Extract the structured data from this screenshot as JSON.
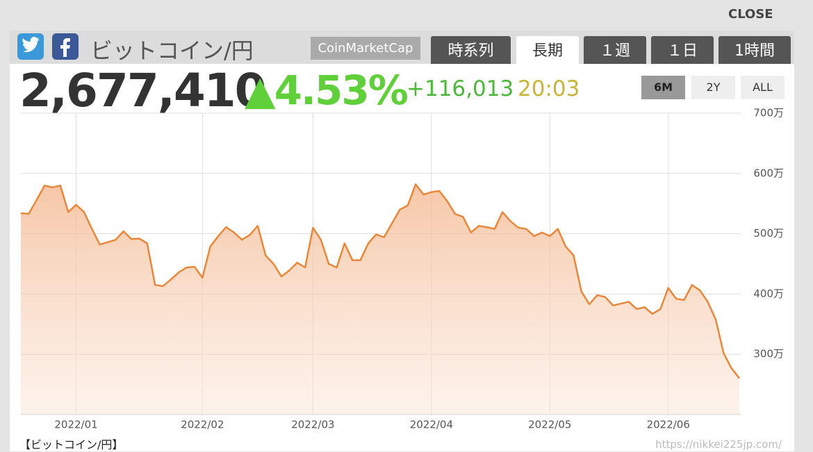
{
  "close": "CLOSE",
  "header": {
    "title": "ビットコイン/円",
    "source": "CoinMarketCap",
    "tabs": [
      "時系列",
      "長期",
      "１週",
      "１日",
      "1時間"
    ],
    "active_tab": 1
  },
  "quote": {
    "price": "2,677,410",
    "change_pct": "▲4.53%",
    "change": "+116,013",
    "time": "20:03"
  },
  "ranges": [
    "6M",
    "2Y",
    "ALL"
  ],
  "active_range": 0,
  "footer": {
    "label": "【ビットコイン/円】",
    "url": "https://nikkei225jp.com/"
  },
  "chart_data": {
    "type": "area",
    "categories": [
      null,
      null,
      null,
      null,
      null,
      null,
      null,
      "2022/01",
      null,
      null,
      null,
      null,
      null,
      null,
      null,
      null,
      null,
      null,
      null,
      null,
      null,
      null,
      null,
      "2022/02",
      null,
      null,
      null,
      null,
      null,
      null,
      null,
      null,
      null,
      null,
      null,
      null,
      null,
      "2022/03",
      null,
      null,
      null,
      null,
      null,
      null,
      null,
      null,
      null,
      null,
      null,
      null,
      null,
      null,
      "2022/04",
      null,
      null,
      null,
      null,
      null,
      null,
      null,
      null,
      null,
      null,
      null,
      null,
      null,
      null,
      "2022/05",
      null,
      null,
      null,
      null,
      null,
      null,
      null,
      null,
      null,
      null,
      null,
      null,
      null,
      null,
      "2022/06",
      null,
      null,
      null,
      null,
      null,
      null,
      null,
      null,
      null
    ],
    "series": [
      {
        "name": "ビットコイン/円",
        "color": "#e8873a",
        "values": [
          5340000,
          5330000,
          5560000,
          5800000,
          5770000,
          5800000,
          5360000,
          5480000,
          5360000,
          5080000,
          4820000,
          4860000,
          4900000,
          5040000,
          4910000,
          4920000,
          4840000,
          4150000,
          4130000,
          4240000,
          4360000,
          4440000,
          4450000,
          4270000,
          4790000,
          4960000,
          5110000,
          5020000,
          4900000,
          4980000,
          5130000,
          4640000,
          4500000,
          4290000,
          4390000,
          4520000,
          4440000,
          5100000,
          4900000,
          4500000,
          4440000,
          4840000,
          4560000,
          4560000,
          4840000,
          4990000,
          4940000,
          5170000,
          5400000,
          5470000,
          5820000,
          5650000,
          5690000,
          5710000,
          5540000,
          5330000,
          5280000,
          5020000,
          5130000,
          5110000,
          5080000,
          5360000,
          5210000,
          5100000,
          5080000,
          4960000,
          5020000,
          4960000,
          5080000,
          4790000,
          4640000,
          4040000,
          3830000,
          3980000,
          3950000,
          3810000,
          3840000,
          3870000,
          3750000,
          3780000,
          3670000,
          3750000,
          4100000,
          3920000,
          3900000,
          4150000,
          4060000,
          3870000,
          3580000,
          3020000,
          2770000,
          2600000
        ]
      }
    ],
    "ylim": [
      2000000,
      7000000
    ],
    "yticks": [
      {
        "value": 3000000,
        "label": "300万"
      },
      {
        "value": 4000000,
        "label": "400万"
      },
      {
        "value": 5000000,
        "label": "500万"
      },
      {
        "value": 6000000,
        "label": "600万"
      },
      {
        "value": 7000000,
        "label": "700万"
      }
    ],
    "grid": true
  }
}
